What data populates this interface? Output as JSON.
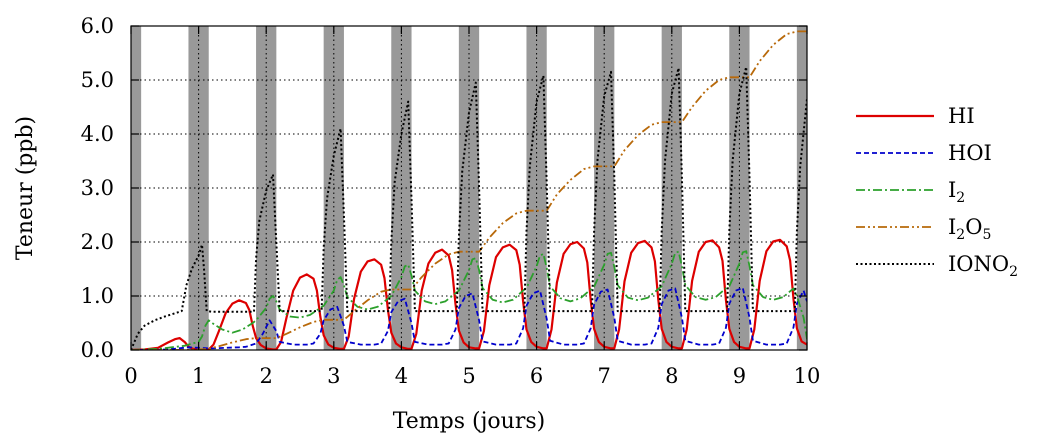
{
  "chart_data": {
    "type": "line",
    "title": "",
    "xlabel": "Temps (jours)",
    "ylabel": "Teneur (ppb)",
    "xlim": [
      0,
      10
    ],
    "ylim": [
      0,
      6
    ],
    "xticks": [
      "0",
      "1",
      "2",
      "3",
      "4",
      "5",
      "6",
      "7",
      "8",
      "9",
      "10"
    ],
    "yticks": [
      "0.0",
      "1.0",
      "2.0",
      "3.0",
      "4.0",
      "5.0",
      "6.0"
    ],
    "grid": true,
    "legend_position": "right",
    "night_bands": [
      {
        "start": 0.0,
        "end": 0.15
      },
      {
        "start": 0.85,
        "end": 1.15
      },
      {
        "start": 1.85,
        "end": 2.15
      },
      {
        "start": 2.85,
        "end": 3.15
      },
      {
        "start": 3.85,
        "end": 4.15
      },
      {
        "start": 4.85,
        "end": 5.15
      },
      {
        "start": 5.85,
        "end": 6.15
      },
      {
        "start": 6.85,
        "end": 7.15
      },
      {
        "start": 7.85,
        "end": 8.15
      },
      {
        "start": 8.85,
        "end": 9.15
      },
      {
        "start": 9.85,
        "end": 10.0
      }
    ],
    "series": [
      {
        "name": "HI",
        "name_parts": [
          {
            "t": "HI",
            "sub": false
          }
        ],
        "color": "#dd0000",
        "dash": "",
        "width": 2.2,
        "x": [
          0,
          0.2,
          0.4,
          0.55,
          0.65,
          0.72,
          0.8,
          0.85,
          0.92,
          1.0,
          1.1,
          1.15,
          1.22,
          1.3,
          1.4,
          1.5,
          1.6,
          1.7,
          1.75,
          1.8,
          1.85,
          1.92,
          2.0,
          2.1,
          2.15,
          2.22,
          2.3,
          2.4,
          2.5,
          2.6,
          2.7,
          2.75,
          2.8,
          2.85,
          2.92,
          3.0,
          3.1,
          3.15,
          3.22,
          3.3,
          3.4,
          3.5,
          3.6,
          3.7,
          3.75,
          3.8,
          3.85,
          3.92,
          4.0,
          4.1,
          4.15,
          4.22,
          4.3,
          4.4,
          4.5,
          4.6,
          4.7,
          4.75,
          4.8,
          4.85,
          4.92,
          5.0,
          5.1,
          5.15,
          5.22,
          5.3,
          5.4,
          5.5,
          5.6,
          5.7,
          5.75,
          5.8,
          5.85,
          5.92,
          6.0,
          6.1,
          6.15,
          6.22,
          6.3,
          6.4,
          6.5,
          6.6,
          6.7,
          6.75,
          6.8,
          6.85,
          6.92,
          7.0,
          7.1,
          7.15,
          7.22,
          7.3,
          7.4,
          7.5,
          7.6,
          7.7,
          7.75,
          7.8,
          7.85,
          7.92,
          8.0,
          8.1,
          8.15,
          8.22,
          8.3,
          8.4,
          8.5,
          8.6,
          8.7,
          8.75,
          8.8,
          8.85,
          8.92,
          9.0,
          9.1,
          9.15,
          9.22,
          9.3,
          9.4,
          9.5,
          9.6,
          9.7,
          9.75,
          9.8,
          9.85,
          9.92,
          10.0
        ],
        "y": [
          0,
          0.01,
          0.04,
          0.14,
          0.2,
          0.22,
          0.14,
          0.06,
          0.02,
          0.01,
          0.0,
          0.01,
          0.1,
          0.35,
          0.68,
          0.86,
          0.92,
          0.87,
          0.74,
          0.45,
          0.22,
          0.09,
          0.03,
          0.01,
          0.01,
          0.15,
          0.6,
          1.1,
          1.34,
          1.4,
          1.32,
          1.1,
          0.62,
          0.27,
          0.1,
          0.04,
          0.02,
          0.02,
          0.25,
          0.95,
          1.45,
          1.64,
          1.68,
          1.58,
          1.33,
          0.75,
          0.32,
          0.12,
          0.05,
          0.02,
          0.02,
          0.3,
          1.1,
          1.6,
          1.8,
          1.86,
          1.75,
          1.48,
          0.85,
          0.36,
          0.14,
          0.05,
          0.03,
          0.03,
          0.35,
          1.2,
          1.72,
          1.9,
          1.95,
          1.85,
          1.58,
          0.9,
          0.38,
          0.15,
          0.06,
          0.03,
          0.03,
          0.38,
          1.25,
          1.78,
          1.96,
          2.0,
          1.88,
          1.62,
          0.92,
          0.39,
          0.15,
          0.06,
          0.03,
          0.03,
          0.38,
          1.27,
          1.8,
          1.98,
          2.02,
          1.9,
          1.64,
          0.93,
          0.39,
          0.15,
          0.06,
          0.03,
          0.03,
          0.38,
          1.28,
          1.82,
          2.0,
          2.03,
          1.9,
          1.65,
          0.93,
          0.39,
          0.15,
          0.06,
          0.03,
          0.03,
          0.38,
          1.28,
          1.83,
          2.01,
          2.04,
          1.92,
          1.66,
          0.94,
          0.4,
          0.16,
          0.1
        ]
      },
      {
        "name": "HOI",
        "name_parts": [
          {
            "t": "HOI",
            "sub": false
          }
        ],
        "color": "#0000cc",
        "dash": "5,3",
        "width": 1.8,
        "x": [
          0,
          0.3,
          0.5,
          0.7,
          0.85,
          1.0,
          1.2,
          1.4,
          1.6,
          1.7,
          1.85,
          1.95,
          2.05,
          2.15,
          2.2,
          2.4,
          2.6,
          2.7,
          2.8,
          2.85,
          2.95,
          3.05,
          3.15,
          3.2,
          3.4,
          3.6,
          3.7,
          3.8,
          3.85,
          3.95,
          4.05,
          4.15,
          4.2,
          4.4,
          4.6,
          4.7,
          4.8,
          4.85,
          4.95,
          5.05,
          5.15,
          5.2,
          5.4,
          5.6,
          5.7,
          5.8,
          5.85,
          5.95,
          6.05,
          6.15,
          6.2,
          6.4,
          6.6,
          6.7,
          6.8,
          6.85,
          6.95,
          7.05,
          7.15,
          7.2,
          7.4,
          7.6,
          7.7,
          7.8,
          7.85,
          7.95,
          8.05,
          8.15,
          8.2,
          8.4,
          8.6,
          8.7,
          8.8,
          8.85,
          8.95,
          9.05,
          9.15,
          9.2,
          9.4,
          9.6,
          9.7,
          9.8,
          9.85,
          9.95,
          10.0
        ],
        "y": [
          0,
          0.0,
          0.01,
          0.03,
          0.05,
          0.04,
          0.03,
          0.04,
          0.05,
          0.06,
          0.12,
          0.3,
          0.55,
          0.35,
          0.15,
          0.1,
          0.1,
          0.12,
          0.3,
          0.55,
          0.75,
          0.8,
          0.45,
          0.15,
          0.1,
          0.1,
          0.12,
          0.35,
          0.7,
          0.9,
          0.95,
          0.5,
          0.15,
          0.1,
          0.1,
          0.12,
          0.38,
          0.78,
          1.0,
          1.05,
          0.55,
          0.16,
          0.1,
          0.1,
          0.12,
          0.4,
          0.82,
          1.05,
          1.1,
          0.58,
          0.17,
          0.1,
          0.1,
          0.12,
          0.4,
          0.84,
          1.08,
          1.12,
          0.6,
          0.17,
          0.1,
          0.1,
          0.12,
          0.41,
          0.85,
          1.1,
          1.14,
          0.6,
          0.17,
          0.1,
          0.1,
          0.12,
          0.41,
          0.86,
          1.1,
          1.15,
          0.6,
          0.17,
          0.1,
          0.1,
          0.12,
          0.42,
          0.86,
          1.1,
          0.9
        ]
      },
      {
        "name": "I2",
        "name_parts": [
          {
            "t": "I",
            "sub": false
          },
          {
            "t": "2",
            "sub": true
          }
        ],
        "color": "#2ca02c",
        "dash": "9,3,2,3",
        "width": 1.8,
        "x": [
          0,
          0.4,
          0.6,
          0.8,
          0.85,
          1.0,
          1.05,
          1.1,
          1.15,
          1.2,
          1.35,
          1.5,
          1.65,
          1.8,
          1.85,
          2.0,
          2.05,
          2.1,
          2.15,
          2.2,
          2.35,
          2.5,
          2.65,
          2.8,
          2.85,
          3.0,
          3.05,
          3.1,
          3.15,
          3.2,
          3.35,
          3.5,
          3.65,
          3.8,
          3.85,
          4.0,
          4.05,
          4.1,
          4.15,
          4.2,
          4.35,
          4.5,
          4.65,
          4.8,
          4.85,
          5.0,
          5.05,
          5.1,
          5.15,
          5.2,
          5.35,
          5.5,
          5.65,
          5.8,
          5.85,
          6.0,
          6.05,
          6.1,
          6.15,
          6.2,
          6.35,
          6.5,
          6.65,
          6.8,
          6.85,
          7.0,
          7.05,
          7.1,
          7.15,
          7.2,
          7.35,
          7.5,
          7.65,
          7.8,
          7.85,
          8.0,
          8.05,
          8.1,
          8.15,
          8.2,
          8.35,
          8.5,
          8.65,
          8.8,
          8.85,
          9.0,
          9.05,
          9.1,
          9.15,
          9.2,
          9.35,
          9.5,
          9.65,
          9.8,
          9.85,
          9.95,
          10.0
        ],
        "y": [
          0,
          0.02,
          0.05,
          0.08,
          0.1,
          0.15,
          0.25,
          0.45,
          0.55,
          0.5,
          0.38,
          0.32,
          0.38,
          0.5,
          0.55,
          0.78,
          0.95,
          1.0,
          0.9,
          0.75,
          0.62,
          0.6,
          0.65,
          0.78,
          0.82,
          1.1,
          1.3,
          1.35,
          1.2,
          0.98,
          0.8,
          0.75,
          0.8,
          0.95,
          1.0,
          1.35,
          1.55,
          1.58,
          1.38,
          1.1,
          0.9,
          0.85,
          0.9,
          1.05,
          1.1,
          1.48,
          1.68,
          1.7,
          1.48,
          1.15,
          0.93,
          0.88,
          0.93,
          1.1,
          1.15,
          1.55,
          1.75,
          1.78,
          1.52,
          1.18,
          0.96,
          0.9,
          0.96,
          1.12,
          1.17,
          1.58,
          1.78,
          1.8,
          1.54,
          1.2,
          0.97,
          0.92,
          0.97,
          1.13,
          1.18,
          1.6,
          1.8,
          1.82,
          1.55,
          1.2,
          0.98,
          0.93,
          0.98,
          1.14,
          1.18,
          1.6,
          1.81,
          1.83,
          1.56,
          1.2,
          0.98,
          0.93,
          0.98,
          1.14,
          1.0,
          0.6,
          0.2
        ]
      },
      {
        "name": "I2O5",
        "name_parts": [
          {
            "t": "I",
            "sub": false
          },
          {
            "t": "2",
            "sub": true
          },
          {
            "t": "O",
            "sub": false
          },
          {
            "t": "5",
            "sub": true
          }
        ],
        "color": "#b8690a",
        "dash": "9,3,2,3,2,3",
        "width": 1.8,
        "x": [
          0,
          0.5,
          0.8,
          1.0,
          1.15,
          1.3,
          1.5,
          1.7,
          1.85,
          2.15,
          2.3,
          2.5,
          2.7,
          2.85,
          3.15,
          3.3,
          3.5,
          3.7,
          3.85,
          4.15,
          4.3,
          4.5,
          4.7,
          4.85,
          5.15,
          5.3,
          5.5,
          5.7,
          5.85,
          6.15,
          6.3,
          6.5,
          6.7,
          6.85,
          7.15,
          7.3,
          7.5,
          7.7,
          7.85,
          8.15,
          8.3,
          8.5,
          8.7,
          8.85,
          9.15,
          9.3,
          9.5,
          9.7,
          9.85,
          10.0
        ],
        "y": [
          0,
          0,
          0.0,
          0.01,
          0.02,
          0.07,
          0.14,
          0.2,
          0.22,
          0.22,
          0.3,
          0.42,
          0.52,
          0.56,
          0.56,
          0.72,
          0.92,
          1.08,
          1.12,
          1.12,
          1.35,
          1.6,
          1.77,
          1.82,
          1.82,
          2.08,
          2.35,
          2.53,
          2.58,
          2.58,
          2.88,
          3.15,
          3.35,
          3.4,
          3.4,
          3.7,
          3.98,
          4.17,
          4.22,
          4.22,
          4.5,
          4.8,
          5.0,
          5.05,
          5.05,
          5.35,
          5.65,
          5.85,
          5.9,
          5.9
        ]
      },
      {
        "name": "IONO2",
        "name_parts": [
          {
            "t": "IONO",
            "sub": false
          },
          {
            "t": "2",
            "sub": true
          }
        ],
        "color": "#000000",
        "dash": "2,2.5",
        "width": 2.0,
        "x": [
          0,
          0.1,
          0.2,
          0.35,
          0.5,
          0.65,
          0.75,
          0.82,
          0.9,
          1.0,
          1.05,
          1.08,
          1.12,
          1.2,
          1.5,
          1.82,
          1.85,
          1.9,
          2.0,
          2.1,
          2.15,
          2.2,
          2.5,
          2.82,
          2.85,
          2.9,
          3.0,
          3.1,
          3.15,
          3.2,
          3.5,
          3.82,
          3.85,
          3.9,
          4.0,
          4.1,
          4.15,
          4.2,
          4.5,
          4.82,
          4.85,
          4.9,
          5.0,
          5.1,
          5.15,
          5.2,
          5.5,
          5.82,
          5.85,
          5.9,
          6.0,
          6.1,
          6.15,
          6.2,
          6.5,
          6.82,
          6.85,
          6.9,
          7.0,
          7.1,
          7.15,
          7.2,
          7.5,
          7.82,
          7.85,
          7.9,
          8.0,
          8.1,
          8.15,
          8.2,
          8.5,
          8.82,
          8.85,
          8.9,
          9.0,
          9.1,
          9.15,
          9.2,
          9.5,
          9.82,
          9.85,
          9.9,
          10.0
        ],
        "y": [
          0,
          0.3,
          0.45,
          0.55,
          0.62,
          0.68,
          0.72,
          1.2,
          1.5,
          1.75,
          1.95,
          1.5,
          0.72,
          0.71,
          0.71,
          0.71,
          1.7,
          2.4,
          2.95,
          3.25,
          2.0,
          0.72,
          0.72,
          0.72,
          1.9,
          2.8,
          3.6,
          4.1,
          2.5,
          0.72,
          0.72,
          0.72,
          2.0,
          3.1,
          4.0,
          4.6,
          2.8,
          0.72,
          0.72,
          0.72,
          2.1,
          3.3,
          4.4,
          4.95,
          3.0,
          0.72,
          0.72,
          0.72,
          2.2,
          3.4,
          4.6,
          5.08,
          3.1,
          0.72,
          0.72,
          0.72,
          2.2,
          3.5,
          4.7,
          5.15,
          3.2,
          0.72,
          0.72,
          0.72,
          2.2,
          3.5,
          4.75,
          5.22,
          3.2,
          0.72,
          0.72,
          0.72,
          2.2,
          3.5,
          4.75,
          5.24,
          3.2,
          0.72,
          0.72,
          0.72,
          2.2,
          3.4,
          4.65
        ]
      }
    ]
  }
}
